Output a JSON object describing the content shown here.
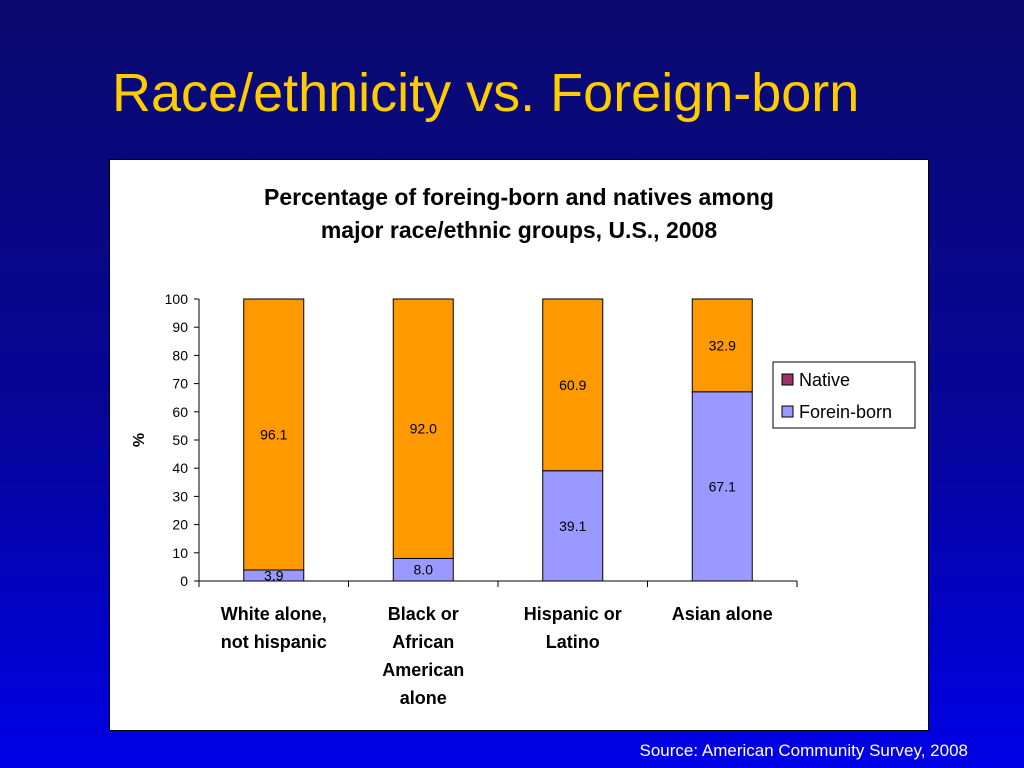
{
  "slide": {
    "title": "Race/ethnicity vs. Foreign-born",
    "source": "Source: American Community Survey, 2008"
  },
  "chart_data": {
    "type": "bar",
    "stacked": true,
    "title_lines": [
      "Percentage of foreing-born and natives among",
      "major race/ethnic groups, U.S., 2008"
    ],
    "ylabel": "%",
    "ylim": [
      0,
      100
    ],
    "yticks": [
      0,
      10,
      20,
      30,
      40,
      50,
      60,
      70,
      80,
      90,
      100
    ],
    "categories": [
      [
        "White alone,",
        "not hispanic"
      ],
      [
        "Black or",
        "African",
        "American",
        "alone"
      ],
      [
        "Hispanic or",
        "Latino"
      ],
      [
        "Asian alone"
      ]
    ],
    "series": [
      {
        "name": "Forein-born",
        "color": "#9999ff",
        "values": [
          3.9,
          8.0,
          39.1,
          67.1
        ]
      },
      {
        "name": "Native",
        "color": "#ff9900",
        "values": [
          96.1,
          92.0,
          60.9,
          32.9
        ]
      }
    ],
    "legend": {
      "position": "right",
      "entries": [
        {
          "label": "Native",
          "color": "#993366"
        },
        {
          "label": "Forein-born",
          "color": "#9999ff"
        }
      ]
    },
    "grid": false
  }
}
